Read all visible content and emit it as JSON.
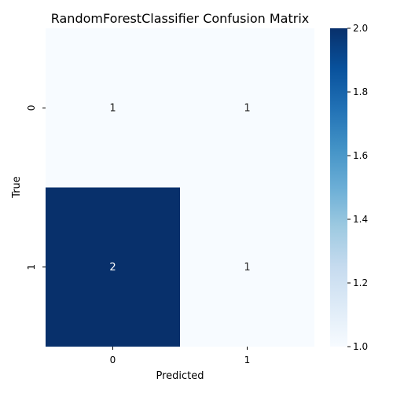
{
  "chart_data": {
    "type": "heatmap",
    "title": "RandomForestClassifier Confusion Matrix",
    "xlabel": "Predicted",
    "ylabel": "True",
    "x_categories": [
      "0",
      "1"
    ],
    "y_categories": [
      "0",
      "1"
    ],
    "values": [
      [
        1,
        1
      ],
      [
        2,
        1
      ]
    ],
    "colormap": "Blues",
    "color_low": "#f7fbff",
    "color_high": "#08306b",
    "colorbar": {
      "vmin": 1.0,
      "vmax": 2.0,
      "ticks": [
        "1.0",
        "1.2",
        "1.4",
        "1.6",
        "1.8",
        "2.0"
      ]
    },
    "annot_colors": {
      "light_cell": "#262626",
      "dark_cell": "#ffffff"
    }
  }
}
